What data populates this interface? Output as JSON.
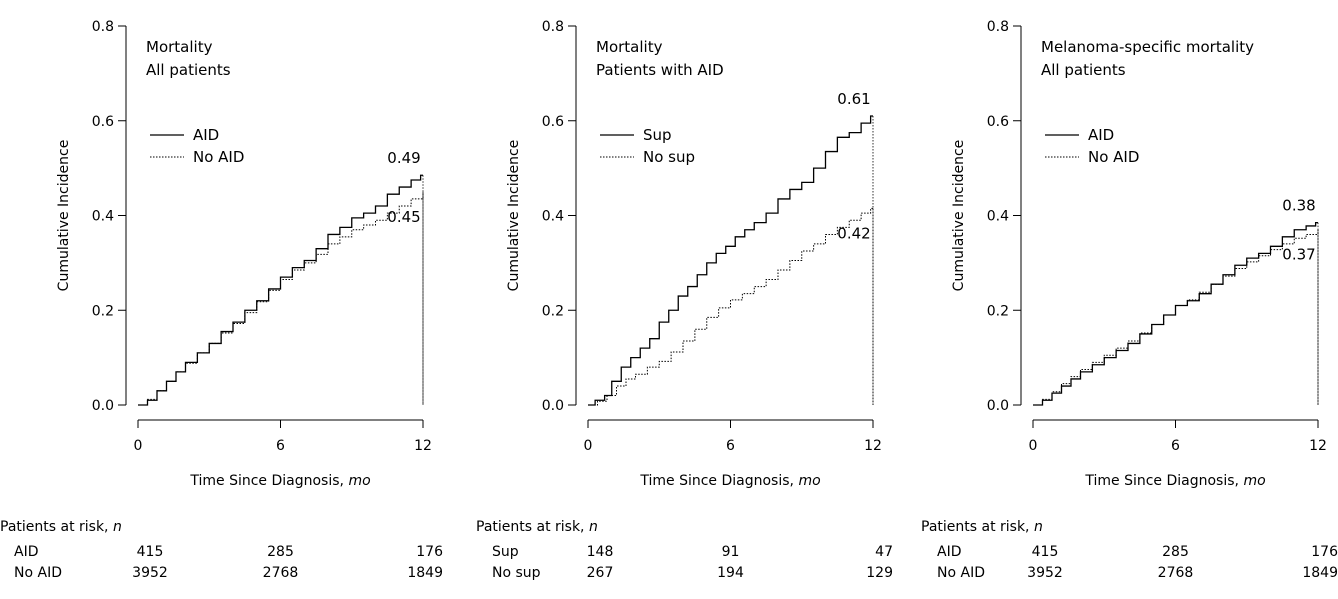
{
  "chart_data": [
    {
      "type": "line",
      "title_lines": [
        "Mortality",
        "All patients"
      ],
      "xlabel": "Time Since Diagnosis, ",
      "xlabel_unit": "mo",
      "ylabel": "Cumulative Incidence",
      "xlim": [
        0,
        12
      ],
      "ylim": [
        0,
        0.8
      ],
      "xticks": [
        0,
        6,
        12
      ],
      "xtick_labels": [
        "0",
        "6",
        "12"
      ],
      "yticks": [
        0,
        0.2,
        0.4,
        0.6,
        0.8
      ],
      "ytick_labels": [
        "0.0",
        "0.2",
        "0.4",
        "0.6",
        "0.8"
      ],
      "legend_position": "upper-left",
      "series": [
        {
          "name": "AID",
          "style": "solid",
          "end_label": "0.49",
          "x": [
            0,
            0.4,
            0.8,
            1.2,
            1.6,
            2.0,
            2.5,
            3.0,
            3.5,
            4.0,
            4.5,
            5.0,
            5.5,
            6.0,
            6.5,
            7.0,
            7.5,
            8.0,
            8.5,
            9.0,
            9.5,
            10.0,
            10.5,
            11.0,
            11.5,
            11.9
          ],
          "y": [
            0,
            0.01,
            0.03,
            0.05,
            0.07,
            0.09,
            0.11,
            0.13,
            0.155,
            0.175,
            0.2,
            0.22,
            0.245,
            0.27,
            0.29,
            0.305,
            0.33,
            0.36,
            0.375,
            0.395,
            0.405,
            0.42,
            0.445,
            0.46,
            0.475,
            0.485
          ]
        },
        {
          "name": "No AID",
          "style": "dotted",
          "end_label": "0.45",
          "x": [
            0,
            0.4,
            0.8,
            1.2,
            1.6,
            2.0,
            2.5,
            3.0,
            3.5,
            4.0,
            4.5,
            5.0,
            5.5,
            6.0,
            6.5,
            7.0,
            7.5,
            8.0,
            8.5,
            9.0,
            9.5,
            10.0,
            10.5,
            11.0,
            11.5,
            12.0
          ],
          "y": [
            0,
            0.012,
            0.03,
            0.05,
            0.07,
            0.088,
            0.11,
            0.13,
            0.152,
            0.172,
            0.195,
            0.218,
            0.242,
            0.265,
            0.285,
            0.3,
            0.318,
            0.34,
            0.355,
            0.37,
            0.38,
            0.39,
            0.405,
            0.42,
            0.435,
            0.45
          ]
        }
      ],
      "risk_table": {
        "title": "Patients at risk, ",
        "title_unit": "n",
        "rows": [
          {
            "label": "AID",
            "values": [
              "415",
              "285",
              "176"
            ]
          },
          {
            "label": "No AID",
            "values": [
              "3952",
              "2768",
              "1849"
            ]
          }
        ]
      }
    },
    {
      "type": "line",
      "title_lines": [
        "Mortality",
        "Patients with AID"
      ],
      "xlabel": "Time Since Diagnosis, ",
      "xlabel_unit": "mo",
      "ylabel": "Cumulative Incidence",
      "xlim": [
        0,
        12
      ],
      "ylim": [
        0,
        0.8
      ],
      "xticks": [
        0,
        6,
        12
      ],
      "xtick_labels": [
        "0",
        "6",
        "12"
      ],
      "yticks": [
        0,
        0.2,
        0.4,
        0.6,
        0.8
      ],
      "ytick_labels": [
        "0.0",
        "0.2",
        "0.4",
        "0.6",
        "0.8"
      ],
      "legend_position": "upper-left",
      "series": [
        {
          "name": "Sup",
          "style": "solid",
          "end_label": "0.61",
          "x": [
            0,
            0.3,
            0.7,
            1.0,
            1.4,
            1.8,
            2.2,
            2.6,
            3.0,
            3.4,
            3.8,
            4.2,
            4.6,
            5.0,
            5.4,
            5.8,
            6.2,
            6.6,
            7.0,
            7.5,
            8.0,
            8.5,
            9.0,
            9.5,
            10.0,
            10.5,
            11.0,
            11.5,
            11.9
          ],
          "y": [
            0,
            0.01,
            0.02,
            0.05,
            0.08,
            0.1,
            0.12,
            0.14,
            0.175,
            0.2,
            0.23,
            0.25,
            0.275,
            0.3,
            0.32,
            0.335,
            0.355,
            0.37,
            0.385,
            0.405,
            0.435,
            0.455,
            0.47,
            0.5,
            0.535,
            0.565,
            0.575,
            0.595,
            0.61
          ]
        },
        {
          "name": "No sup",
          "style": "dotted",
          "end_label": "0.42",
          "x": [
            0,
            0.4,
            0.8,
            1.2,
            1.6,
            2.0,
            2.5,
            3.0,
            3.5,
            4.0,
            4.5,
            5.0,
            5.5,
            6.0,
            6.5,
            7.0,
            7.5,
            8.0,
            8.5,
            9.0,
            9.5,
            10.0,
            10.5,
            11.0,
            11.5,
            11.9
          ],
          "y": [
            0,
            0.008,
            0.02,
            0.04,
            0.055,
            0.065,
            0.08,
            0.092,
            0.112,
            0.135,
            0.16,
            0.185,
            0.205,
            0.222,
            0.235,
            0.25,
            0.265,
            0.285,
            0.305,
            0.325,
            0.34,
            0.36,
            0.375,
            0.39,
            0.405,
            0.415
          ]
        }
      ],
      "risk_table": {
        "title": "Patients at risk, ",
        "title_unit": "n",
        "rows": [
          {
            "label": "Sup",
            "values": [
              "148",
              "91",
              "47"
            ]
          },
          {
            "label": "No sup",
            "values": [
              "267",
              "194",
              "129"
            ]
          }
        ]
      }
    },
    {
      "type": "line",
      "title_lines": [
        "Melanoma-specific mortality",
        "All patients"
      ],
      "xlabel": "Time Since Diagnosis, ",
      "xlabel_unit": "mo",
      "ylabel": "Cumulative Incidence",
      "xlim": [
        0,
        12
      ],
      "ylim": [
        0,
        0.8
      ],
      "xticks": [
        0,
        6,
        12
      ],
      "xtick_labels": [
        "0",
        "6",
        "12"
      ],
      "yticks": [
        0,
        0.2,
        0.4,
        0.6,
        0.8
      ],
      "ytick_labels": [
        "0.0",
        "0.2",
        "0.4",
        "0.6",
        "0.8"
      ],
      "legend_position": "upper-left",
      "series": [
        {
          "name": "AID",
          "style": "solid",
          "end_label": "0.38",
          "x": [
            0,
            0.4,
            0.8,
            1.2,
            1.6,
            2.0,
            2.5,
            3.0,
            3.5,
            4.0,
            4.5,
            5.0,
            5.5,
            6.0,
            6.5,
            7.0,
            7.5,
            8.0,
            8.5,
            9.0,
            9.5,
            10.0,
            10.5,
            11.0,
            11.5,
            11.9
          ],
          "y": [
            0,
            0.01,
            0.025,
            0.04,
            0.055,
            0.07,
            0.085,
            0.1,
            0.115,
            0.13,
            0.15,
            0.17,
            0.19,
            0.21,
            0.22,
            0.235,
            0.255,
            0.275,
            0.295,
            0.31,
            0.32,
            0.335,
            0.355,
            0.37,
            0.378,
            0.385
          ]
        },
        {
          "name": "No AID",
          "style": "dotted",
          "end_label": "0.37",
          "x": [
            0,
            0.4,
            0.8,
            1.2,
            1.6,
            2.0,
            2.5,
            3.0,
            3.5,
            4.0,
            4.5,
            5.0,
            5.5,
            6.0,
            6.5,
            7.0,
            7.5,
            8.0,
            8.5,
            9.0,
            9.5,
            10.0,
            10.5,
            11.0,
            11.5,
            12.0
          ],
          "y": [
            0,
            0.012,
            0.028,
            0.045,
            0.06,
            0.075,
            0.09,
            0.105,
            0.12,
            0.135,
            0.152,
            0.17,
            0.19,
            0.21,
            0.222,
            0.238,
            0.255,
            0.272,
            0.288,
            0.302,
            0.315,
            0.328,
            0.34,
            0.352,
            0.36,
            0.37
          ]
        }
      ],
      "risk_table": {
        "title": "Patients at risk, ",
        "title_unit": "n",
        "rows": [
          {
            "label": "AID",
            "values": [
              "415",
              "285",
              "176"
            ]
          },
          {
            "label": "No AID",
            "values": [
              "3952",
              "2768",
              "1849"
            ]
          }
        ]
      }
    }
  ]
}
